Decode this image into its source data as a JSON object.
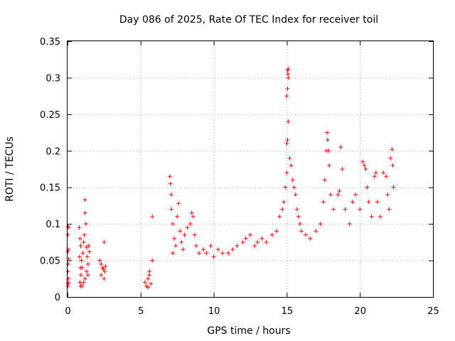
{
  "chart_data": {
    "type": "scatter",
    "title": "Day 086 of 2025, Rate Of TEC Index for receiver toil",
    "xlabel": "GPS time / hours",
    "ylabel": "ROTI / TECUs",
    "xlim": [
      0,
      25
    ],
    "ylim": [
      0,
      0.35
    ],
    "xticks": [
      "0",
      "5",
      "10",
      "15",
      "20",
      "25"
    ],
    "yticks": [
      "0",
      "0.05",
      "0.1",
      "0.15",
      "0.2",
      "0.25",
      "0.3",
      "0.35"
    ],
    "grid": true,
    "marker": "+",
    "color": "#ff0000",
    "points": [
      [
        0.02,
        0.097
      ],
      [
        0.05,
        0.095
      ],
      [
        0.03,
        0.085
      ],
      [
        0.06,
        0.065
      ],
      [
        0.02,
        0.062
      ],
      [
        0.04,
        0.045
      ],
      [
        0.03,
        0.035
      ],
      [
        0.05,
        0.02
      ],
      [
        0.02,
        0.015
      ],
      [
        0.04,
        0.018
      ],
      [
        0.06,
        0.025
      ],
      [
        0.08,
        0.052
      ],
      [
        0.8,
        0.095
      ],
      [
        0.85,
        0.08
      ],
      [
        0.9,
        0.07
      ],
      [
        0.82,
        0.055
      ],
      [
        0.95,
        0.05
      ],
      [
        0.88,
        0.04
      ],
      [
        0.92,
        0.03
      ],
      [
        0.85,
        0.02
      ],
      [
        0.9,
        0.015
      ],
      [
        1.0,
        0.04
      ],
      [
        1.05,
        0.06
      ],
      [
        1.1,
        0.075
      ],
      [
        1.15,
        0.085
      ],
      [
        1.2,
        0.115
      ],
      [
        1.2,
        0.133
      ],
      [
        1.25,
        0.1
      ],
      [
        1.3,
        0.068
      ],
      [
        1.35,
        0.055
      ],
      [
        1.4,
        0.045
      ],
      [
        1.3,
        0.035
      ],
      [
        1.2,
        0.025
      ],
      [
        1.1,
        0.02
      ],
      [
        1.0,
        0.015
      ],
      [
        1.45,
        0.07
      ],
      [
        1.5,
        0.062
      ],
      [
        1.4,
        0.03
      ],
      [
        2.2,
        0.05
      ],
      [
        2.3,
        0.045
      ],
      [
        2.4,
        0.04
      ],
      [
        2.5,
        0.075
      ],
      [
        2.45,
        0.038
      ],
      [
        2.55,
        0.035
      ],
      [
        2.3,
        0.03
      ],
      [
        2.5,
        0.025
      ],
      [
        2.6,
        0.042
      ],
      [
        5.3,
        0.02
      ],
      [
        5.4,
        0.015
      ],
      [
        5.5,
        0.025
      ],
      [
        5.6,
        0.03
      ],
      [
        5.5,
        0.013
      ],
      [
        5.7,
        0.018
      ],
      [
        5.8,
        0.05
      ],
      [
        5.8,
        0.11
      ],
      [
        5.6,
        0.035
      ],
      [
        7.0,
        0.165
      ],
      [
        7.05,
        0.155
      ],
      [
        7.1,
        0.14
      ],
      [
        7.1,
        0.12
      ],
      [
        7.2,
        0.1
      ],
      [
        7.3,
        0.08
      ],
      [
        7.4,
        0.07
      ],
      [
        7.2,
        0.06
      ],
      [
        7.5,
        0.11
      ],
      [
        7.6,
        0.128
      ],
      [
        7.7,
        0.09
      ],
      [
        7.8,
        0.075
      ],
      [
        7.9,
        0.065
      ],
      [
        8.0,
        0.085
      ],
      [
        8.2,
        0.095
      ],
      [
        8.4,
        0.1
      ],
      [
        8.5,
        0.115
      ],
      [
        8.6,
        0.11
      ],
      [
        8.7,
        0.085
      ],
      [
        8.8,
        0.07
      ],
      [
        9.0,
        0.06
      ],
      [
        9.3,
        0.065
      ],
      [
        9.5,
        0.06
      ],
      [
        9.8,
        0.07
      ],
      [
        10.0,
        0.055
      ],
      [
        10.3,
        0.065
      ],
      [
        10.6,
        0.06
      ],
      [
        11.0,
        0.06
      ],
      [
        11.3,
        0.065
      ],
      [
        11.6,
        0.07
      ],
      [
        12.0,
        0.075
      ],
      [
        12.2,
        0.08
      ],
      [
        12.5,
        0.085
      ],
      [
        12.8,
        0.07
      ],
      [
        13.0,
        0.075
      ],
      [
        13.3,
        0.08
      ],
      [
        13.6,
        0.075
      ],
      [
        14.0,
        0.085
      ],
      [
        14.3,
        0.09
      ],
      [
        14.5,
        0.11
      ],
      [
        14.7,
        0.12
      ],
      [
        14.8,
        0.13
      ],
      [
        14.9,
        0.15
      ],
      [
        15.0,
        0.17
      ],
      [
        15.0,
        0.21
      ],
      [
        15.05,
        0.215
      ],
      [
        15.1,
        0.24
      ],
      [
        15.0,
        0.275
      ],
      [
        15.05,
        0.285
      ],
      [
        15.1,
        0.3
      ],
      [
        15.08,
        0.305
      ],
      [
        15.05,
        0.31
      ],
      [
        15.1,
        0.312
      ],
      [
        15.2,
        0.19
      ],
      [
        15.3,
        0.18
      ],
      [
        15.4,
        0.16
      ],
      [
        15.5,
        0.15
      ],
      [
        15.6,
        0.14
      ],
      [
        15.7,
        0.12
      ],
      [
        15.8,
        0.11
      ],
      [
        15.9,
        0.1
      ],
      [
        16.0,
        0.09
      ],
      [
        16.3,
        0.085
      ],
      [
        16.6,
        0.08
      ],
      [
        17.0,
        0.09
      ],
      [
        17.3,
        0.1
      ],
      [
        17.5,
        0.13
      ],
      [
        17.6,
        0.16
      ],
      [
        17.7,
        0.2
      ],
      [
        17.75,
        0.225
      ],
      [
        17.8,
        0.215
      ],
      [
        17.85,
        0.2
      ],
      [
        17.9,
        0.18
      ],
      [
        18.0,
        0.14
      ],
      [
        18.2,
        0.12
      ],
      [
        18.5,
        0.14
      ],
      [
        18.6,
        0.145
      ],
      [
        18.7,
        0.205
      ],
      [
        18.8,
        0.175
      ],
      [
        19.0,
        0.12
      ],
      [
        19.3,
        0.1
      ],
      [
        19.5,
        0.13
      ],
      [
        19.7,
        0.14
      ],
      [
        20.0,
        0.12
      ],
      [
        20.2,
        0.185
      ],
      [
        20.3,
        0.18
      ],
      [
        20.4,
        0.175
      ],
      [
        20.5,
        0.15
      ],
      [
        20.6,
        0.13
      ],
      [
        20.8,
        0.11
      ],
      [
        21.0,
        0.165
      ],
      [
        21.1,
        0.17
      ],
      [
        21.2,
        0.13
      ],
      [
        21.4,
        0.11
      ],
      [
        21.6,
        0.17
      ],
      [
        21.8,
        0.165
      ],
      [
        21.9,
        0.14
      ],
      [
        22.0,
        0.12
      ],
      [
        22.1,
        0.19
      ],
      [
        22.2,
        0.202
      ],
      [
        22.25,
        0.18
      ],
      [
        22.3,
        0.15
      ]
    ]
  }
}
